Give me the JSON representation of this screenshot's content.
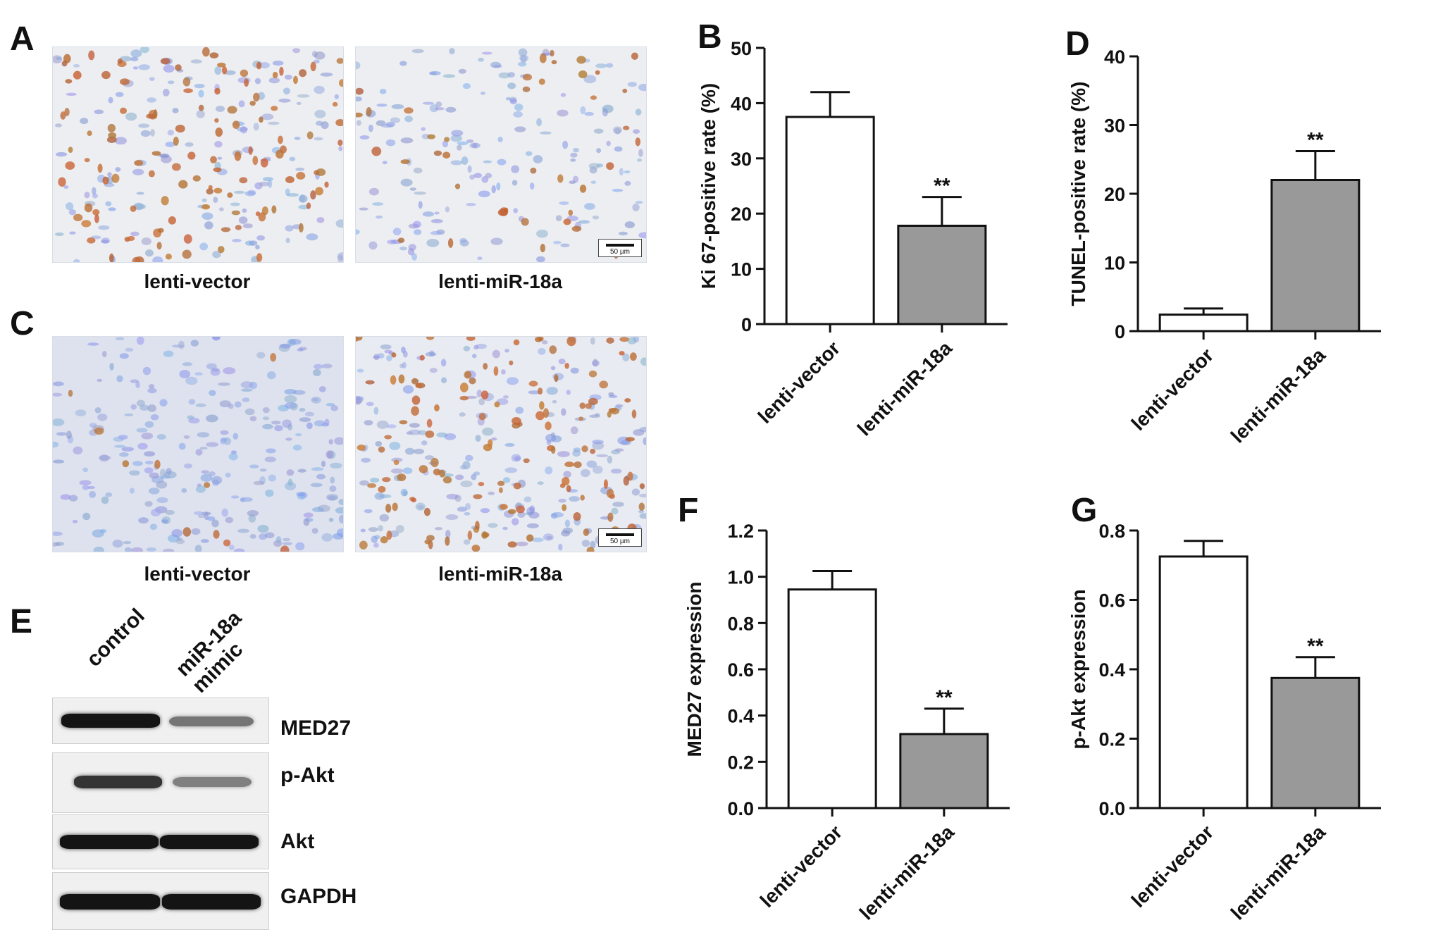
{
  "panels": {
    "A": {
      "letter": "A",
      "left_caption": "lenti-vector",
      "right_caption": "lenti-miR-18a"
    },
    "C": {
      "letter": "C",
      "left_caption": "lenti-vector",
      "right_caption": "lenti-miR-18a"
    },
    "E": {
      "letter": "E"
    },
    "B": {
      "letter": "B"
    },
    "D": {
      "letter": "D"
    },
    "F": {
      "letter": "F"
    },
    "G": {
      "letter": "G"
    }
  },
  "scale_bar_text": "50 µm",
  "western_blot": {
    "lanes": [
      "control",
      "miR-18a\nmimic"
    ],
    "rows": [
      {
        "label": "MED27",
        "intensity": [
          1.0,
          0.55
        ]
      },
      {
        "label": "p-Akt",
        "intensity": [
          0.85,
          0.5
        ]
      },
      {
        "label": "Akt",
        "intensity": [
          1.0,
          1.0
        ]
      },
      {
        "label": "GAPDH",
        "intensity": [
          1.0,
          1.0
        ]
      }
    ]
  },
  "colors": {
    "bar_control": "#ffffff",
    "bar_treated": "#999999",
    "stroke": "#111111"
  },
  "chart_data": [
    {
      "id": "B",
      "type": "bar",
      "categories": [
        "lenti-vector",
        "lenti-miR-18a"
      ],
      "values": [
        37.5,
        17.8
      ],
      "errors": [
        4.5,
        5.2
      ],
      "significance": [
        "",
        "**"
      ],
      "xlabel": "",
      "ylabel": "Ki 67-positive rate (%)",
      "ylim": [
        0,
        50
      ],
      "yticks": [
        0,
        10,
        20,
        30,
        40,
        50
      ],
      "tick_decimals": 0
    },
    {
      "id": "D",
      "type": "bar",
      "categories": [
        "lenti-vector",
        "lenti-miR-18a"
      ],
      "values": [
        2.4,
        22.0
      ],
      "errors": [
        0.9,
        4.2
      ],
      "significance": [
        "",
        "**"
      ],
      "xlabel": "",
      "ylabel": "TUNEL-positive rate (%)",
      "ylim": [
        0,
        40
      ],
      "yticks": [
        0,
        10,
        20,
        30,
        40
      ],
      "tick_decimals": 0
    },
    {
      "id": "F",
      "type": "bar",
      "categories": [
        "lenti-vector",
        "lenti-miR-18a"
      ],
      "values": [
        0.945,
        0.32
      ],
      "errors": [
        0.08,
        0.11
      ],
      "significance": [
        "",
        "**"
      ],
      "xlabel": "",
      "ylabel": "MED27 expression",
      "ylim": [
        0,
        1.2
      ],
      "yticks": [
        0,
        0.2,
        0.4,
        0.6,
        0.8,
        1.0,
        1.2
      ],
      "tick_decimals": 1
    },
    {
      "id": "G",
      "type": "bar",
      "categories": [
        "lenti-vector",
        "lenti-miR-18a"
      ],
      "values": [
        0.725,
        0.375
      ],
      "errors": [
        0.045,
        0.06
      ],
      "significance": [
        "",
        "**"
      ],
      "xlabel": "",
      "ylabel": "p-Akt expression",
      "ylim": [
        0,
        0.8
      ],
      "yticks": [
        0,
        0.2,
        0.4,
        0.6,
        0.8
      ],
      "tick_decimals": 1
    }
  ]
}
